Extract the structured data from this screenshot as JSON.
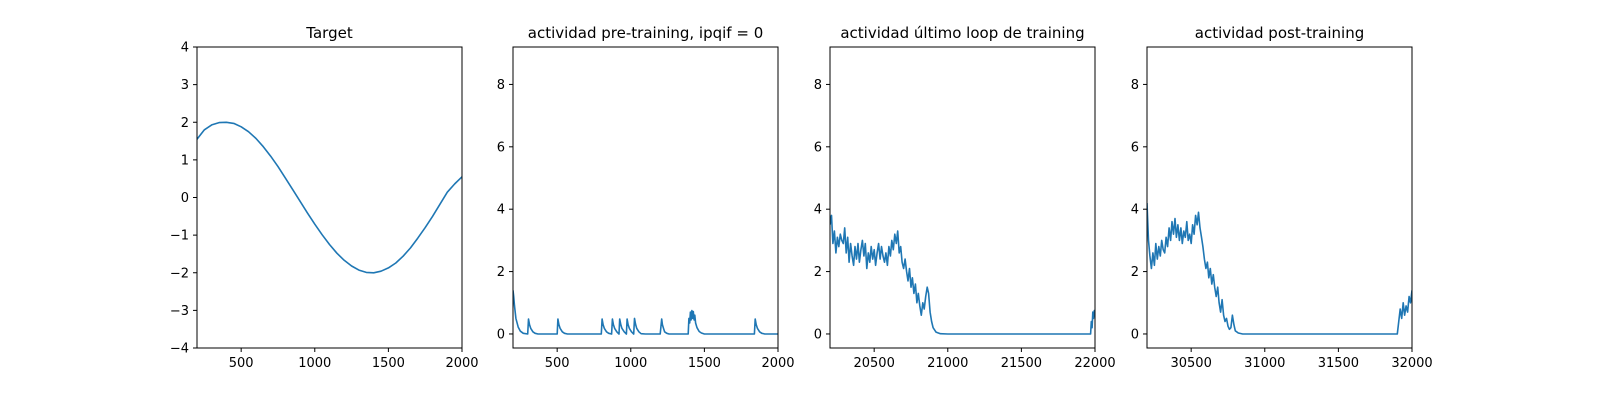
{
  "chart_data": [
    {
      "type": "line",
      "title": "Target",
      "xlabel": "",
      "ylabel": "",
      "xlim": [
        200,
        2000
      ],
      "ylim": [
        -4,
        4
      ],
      "xticks": [
        500,
        1000,
        1500,
        2000
      ],
      "yticks": [
        -4,
        -3,
        -2,
        -1,
        0,
        1,
        2,
        3,
        4
      ],
      "grid": false,
      "x": [
        200,
        250,
        300,
        350,
        400,
        450,
        500,
        550,
        600,
        650,
        700,
        750,
        800,
        850,
        900,
        950,
        1000,
        1050,
        1100,
        1150,
        1200,
        1250,
        1300,
        1350,
        1400,
        1450,
        1500,
        1550,
        1600,
        1650,
        1700,
        1750,
        1800,
        1850,
        1900,
        1950,
        2000
      ],
      "y": [
        1.55,
        1.8,
        1.93,
        1.99,
        2.0,
        1.97,
        1.88,
        1.75,
        1.57,
        1.35,
        1.1,
        0.82,
        0.52,
        0.21,
        -0.1,
        -0.41,
        -0.71,
        -0.99,
        -1.25,
        -1.48,
        -1.67,
        -1.82,
        -1.93,
        -1.99,
        -2.0,
        -1.96,
        -1.87,
        -1.74,
        -1.56,
        -1.34,
        -1.08,
        -0.8,
        -0.5,
        -0.18,
        0.14,
        0.36,
        0.55
      ]
    },
    {
      "type": "line",
      "title": "actividad pre-training, ipqif = 0",
      "xlabel": "",
      "ylabel": "",
      "xlim": [
        200,
        2000
      ],
      "ylim": [
        -0.45,
        9.2
      ],
      "xticks": [
        500,
        1000,
        1500,
        2000
      ],
      "yticks": [
        0,
        2,
        4,
        6,
        8
      ],
      "grid": false,
      "x": [
        200,
        205,
        210,
        220,
        235,
        250,
        270,
        300,
        305,
        312,
        320,
        335,
        350,
        370,
        400,
        450,
        500,
        505,
        512,
        520,
        535,
        550,
        570,
        600,
        650,
        700,
        750,
        800,
        805,
        812,
        820,
        835,
        850,
        870,
        875,
        882,
        890,
        905,
        920,
        925,
        932,
        940,
        955,
        970,
        975,
        982,
        990,
        1005,
        1020,
        1025,
        1032,
        1040,
        1055,
        1070,
        1100,
        1150,
        1200,
        1210,
        1215,
        1222,
        1230,
        1245,
        1260,
        1280,
        1300,
        1350,
        1390,
        1395,
        1400,
        1405,
        1410,
        1415,
        1420,
        1425,
        1430,
        1435,
        1440,
        1450,
        1465,
        1480,
        1500,
        1550,
        1600,
        1650,
        1700,
        1750,
        1800,
        1840,
        1845,
        1852,
        1860,
        1875,
        1890,
        1910,
        1950,
        2000
      ],
      "y": [
        1.4,
        1.2,
        0.9,
        0.5,
        0.22,
        0.09,
        0.02,
        0.0,
        0.48,
        0.3,
        0.18,
        0.07,
        0.02,
        0.0,
        0.0,
        0.0,
        0.0,
        0.48,
        0.3,
        0.18,
        0.07,
        0.02,
        0.0,
        0.0,
        0.0,
        0.0,
        0.0,
        0.0,
        0.48,
        0.3,
        0.18,
        0.07,
        0.02,
        0.0,
        0.48,
        0.3,
        0.18,
        0.07,
        0.0,
        0.48,
        0.3,
        0.18,
        0.07,
        0.0,
        0.48,
        0.3,
        0.18,
        0.07,
        0.0,
        0.5,
        0.32,
        0.18,
        0.07,
        0.01,
        0.0,
        0.0,
        0.0,
        0.48,
        0.3,
        0.18,
        0.07,
        0.02,
        0.0,
        0.0,
        0.0,
        0.0,
        0.0,
        0.5,
        0.35,
        0.7,
        0.45,
        0.75,
        0.5,
        0.72,
        0.45,
        0.6,
        0.35,
        0.2,
        0.08,
        0.03,
        0.0,
        0.0,
        0.0,
        0.0,
        0.0,
        0.0,
        0.0,
        0.0,
        0.48,
        0.3,
        0.18,
        0.07,
        0.02,
        0.0,
        0.0,
        0.0
      ]
    },
    {
      "type": "line",
      "title": "actividad último loop de training",
      "xlabel": "",
      "ylabel": "",
      "xlim": [
        20200,
        22000
      ],
      "ylim": [
        -0.45,
        9.2
      ],
      "xticks": [
        20500,
        21000,
        21500,
        22000
      ],
      "yticks": [
        0,
        2,
        4,
        6,
        8
      ],
      "grid": false,
      "x": [
        20200,
        20210,
        20220,
        20230,
        20240,
        20250,
        20260,
        20270,
        20280,
        20290,
        20300,
        20310,
        20320,
        20330,
        20340,
        20350,
        20360,
        20370,
        20380,
        20390,
        20400,
        20410,
        20420,
        20430,
        20440,
        20450,
        20460,
        20470,
        20480,
        20490,
        20500,
        20510,
        20520,
        20530,
        20540,
        20550,
        20560,
        20570,
        20580,
        20590,
        20600,
        20610,
        20620,
        20630,
        20640,
        20650,
        20660,
        20670,
        20680,
        20690,
        20700,
        20710,
        20720,
        20730,
        20740,
        20750,
        20760,
        20770,
        20780,
        20790,
        20800,
        20810,
        20820,
        20830,
        20840,
        20850,
        20860,
        20870,
        20880,
        20890,
        20900,
        20920,
        20950,
        21000,
        21100,
        21200,
        21300,
        21400,
        21500,
        21600,
        21700,
        21800,
        21900,
        21970,
        21975,
        21980,
        21985,
        21990,
        21995,
        22000
      ],
      "y": [
        3.5,
        3.8,
        2.9,
        3.3,
        2.6,
        3.1,
        2.8,
        3.2,
        3.0,
        2.9,
        3.4,
        2.6,
        3.1,
        2.3,
        2.9,
        2.5,
        2.2,
        2.8,
        2.4,
        2.9,
        2.3,
        2.7,
        3.0,
        2.5,
        2.9,
        2.1,
        2.6,
        2.3,
        2.8,
        2.4,
        2.7,
        2.2,
        2.6,
        2.9,
        2.4,
        2.8,
        2.5,
        2.3,
        2.6,
        2.2,
        2.8,
        2.5,
        3.0,
        2.7,
        3.2,
        2.9,
        3.3,
        2.6,
        2.8,
        2.3,
        2.1,
        2.4,
        2.0,
        1.7,
        2.1,
        1.5,
        1.8,
        1.3,
        1.6,
        1.0,
        1.3,
        0.9,
        0.6,
        1.0,
        0.8,
        1.2,
        1.5,
        1.3,
        0.7,
        0.4,
        0.2,
        0.06,
        0.01,
        0.0,
        0.0,
        0.0,
        0.0,
        0.0,
        0.0,
        0.0,
        0.0,
        0.0,
        0.0,
        0.0,
        0.4,
        0.2,
        0.7,
        0.5,
        0.75,
        0.6
      ]
    },
    {
      "type": "line",
      "title": "actividad post-training",
      "xlabel": "",
      "ylabel": "",
      "xlim": [
        30200,
        32000
      ],
      "ylim": [
        -0.45,
        9.2
      ],
      "xticks": [
        30500,
        31000,
        31500,
        32000
      ],
      "yticks": [
        0,
        2,
        4,
        6,
        8
      ],
      "grid": false,
      "x": [
        30200,
        30210,
        30220,
        30230,
        30240,
        30250,
        30260,
        30270,
        30280,
        30290,
        30300,
        30310,
        30320,
        30330,
        30340,
        30350,
        30360,
        30370,
        30380,
        30390,
        30400,
        30410,
        30420,
        30430,
        30440,
        30450,
        30460,
        30470,
        30480,
        30490,
        30500,
        30510,
        30520,
        30530,
        30540,
        30550,
        30560,
        30570,
        30580,
        30590,
        30600,
        30610,
        30620,
        30630,
        30640,
        30650,
        30660,
        30670,
        30680,
        30690,
        30700,
        30710,
        30720,
        30730,
        30740,
        30750,
        30760,
        30770,
        30780,
        30790,
        30800,
        30820,
        30850,
        30900,
        31000,
        31100,
        31200,
        31300,
        31400,
        31500,
        31600,
        31700,
        31800,
        31900,
        31920,
        31930,
        31940,
        31950,
        31960,
        31970,
        31980,
        31990,
        32000
      ],
      "y": [
        4.2,
        3.0,
        2.5,
        2.1,
        2.6,
        2.2,
        2.9,
        2.4,
        2.8,
        2.5,
        3.0,
        2.7,
        2.6,
        3.1,
        2.8,
        3.4,
        3.0,
        3.6,
        3.2,
        3.7,
        3.1,
        3.5,
        3.0,
        3.4,
        2.9,
        3.3,
        3.1,
        3.6,
        3.0,
        3.2,
        2.9,
        3.5,
        3.2,
        3.8,
        3.5,
        3.9,
        3.4,
        3.1,
        2.8,
        2.4,
        2.1,
        2.3,
        1.8,
        2.1,
        1.6,
        1.9,
        1.5,
        1.2,
        1.5,
        1.0,
        0.7,
        1.1,
        0.6,
        0.4,
        0.5,
        0.25,
        0.15,
        0.2,
        0.6,
        0.3,
        0.1,
        0.03,
        0.0,
        0.0,
        0.0,
        0.0,
        0.0,
        0.0,
        0.0,
        0.0,
        0.0,
        0.0,
        0.0,
        0.0,
        0.8,
        0.5,
        1.0,
        0.6,
        0.9,
        0.7,
        1.2,
        1.0,
        1.4
      ]
    }
  ]
}
